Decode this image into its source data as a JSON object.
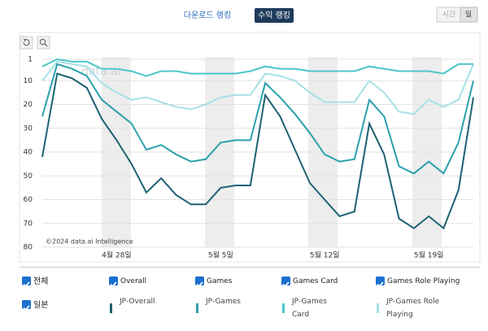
{
  "tabs": [
    "다운로드 랭킹",
    "수익 랭킹"
  ],
  "granularity": [
    "시간",
    "일"
  ],
  "chart_data": {
    "type": "line",
    "watermark": "data.ai",
    "copyright": "©2024 data.ai Intelligence",
    "categories": [
      null,
      null,
      null,
      null,
      null,
      "4월 28일",
      null,
      null,
      null,
      null,
      null,
      null,
      "5월 5일",
      null,
      null,
      null,
      null,
      null,
      null,
      "5월 12일",
      null,
      null,
      null,
      null,
      null,
      null,
      "5월 19일",
      null,
      null,
      null
    ],
    "series": [
      {
        "name": "Overall",
        "color": "#1d6272",
        "values": [
          42,
          7,
          9,
          13,
          26,
          35,
          45,
          57,
          51,
          58,
          62,
          62,
          55,
          54,
          54,
          16,
          25,
          39,
          53,
          60,
          67,
          65,
          28,
          41,
          68,
          72,
          67,
          72,
          56,
          17
        ]
      },
      {
        "name": "Games",
        "color": "#2aa0ad",
        "values": [
          25,
          3,
          5,
          8,
          18,
          23,
          28,
          39,
          37,
          41,
          44,
          43,
          36,
          35,
          35,
          11,
          17,
          24,
          32,
          41,
          44,
          43,
          18,
          25,
          46,
          49,
          44,
          49,
          36,
          10
        ]
      },
      {
        "name": "Games Card",
        "color": "#4cc6c8",
        "values": [
          4,
          1,
          2,
          2,
          5,
          5,
          6,
          8,
          6,
          6,
          7,
          7,
          7,
          7,
          6,
          4,
          5,
          5,
          6,
          6,
          6,
          6,
          4,
          5,
          6,
          6,
          6,
          7,
          3,
          3
        ]
      },
      {
        "name": "Games Role Playing",
        "color": "#a6e0e6",
        "values": [
          10,
          2,
          3,
          4,
          11,
          15,
          18,
          17,
          19,
          21,
          22,
          20,
          17,
          16,
          16,
          7,
          8,
          10,
          15,
          19,
          19,
          19,
          10,
          15,
          23,
          24,
          18,
          21,
          18,
          3
        ]
      }
    ],
    "ylim": [
      0,
      80
    ],
    "y_inverted": true,
    "yticks": [
      1,
      10,
      20,
      30,
      40,
      50,
      60,
      70,
      80
    ],
    "grid": true,
    "filters": [
      {
        "label": "전체"
      },
      {
        "label": "일본",
        "items": [
          "JP-Overall",
          "JP-Games",
          "JP-Games Card",
          "JP-Games Role Playing"
        ]
      }
    ]
  }
}
